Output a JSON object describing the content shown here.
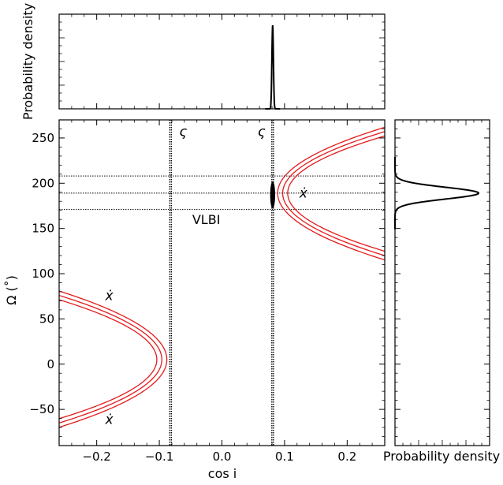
{
  "chart_data": [
    {
      "type": "line",
      "panel": "top-marginal",
      "ylabel": "Probability density",
      "peak_at_cos_i": 0.081,
      "shares_x_axis_with": "main"
    },
    {
      "type": "line",
      "panel": "main",
      "xlabel": "cos i",
      "ylabel": "Ω (˚)",
      "xlim": [
        -0.26,
        0.26
      ],
      "ylim": [
        -90,
        270
      ],
      "xticks": [
        "−0.2",
        "−0.1",
        "0.0",
        "0.1",
        "0.2"
      ],
      "xtick_values": [
        -0.2,
        -0.1,
        0.0,
        0.1,
        0.2
      ],
      "yticks": [
        "−50",
        "0",
        "50",
        "100",
        "150",
        "200",
        "250"
      ],
      "ytick_values": [
        -50,
        0,
        50,
        100,
        150,
        200,
        250
      ],
      "grid": false,
      "vertical_lines": [
        {
          "x": -0.082,
          "label": "ς"
        },
        {
          "x": 0.081,
          "label": "ς"
        }
      ],
      "horizontal_lines": [
        171,
        189,
        208
      ],
      "ellipse": {
        "center_x": 0.081,
        "center_y": 187,
        "half_width": 0.004,
        "half_height": 15
      },
      "curves": [
        {
          "name": "x-dot left curve",
          "vertex": [
            -0.096,
            5
          ],
          "arms_end_x": -0.26,
          "arms_end_y": [
            76,
            -65
          ],
          "offsets": [
            -0.008,
            0.0,
            0.008
          ]
        },
        {
          "name": "x-dot right curve",
          "vertex": [
            0.097,
            189
          ],
          "arms_end_x": 0.26,
          "arms_end_y": [
            257,
            120
          ],
          "offsets": [
            -0.008,
            0.0,
            0.008
          ]
        }
      ],
      "annotations": [
        {
          "text": "VLBI",
          "x": -0.025,
          "y": 155
        },
        {
          "text": "ẋ",
          "x": 0.13,
          "y": 184
        },
        {
          "text": "ẋ",
          "x": -0.18,
          "y": 71
        },
        {
          "text": "ẋ",
          "x": -0.18,
          "y": -66
        }
      ],
      "colors": {
        "curves": "#e31a1c",
        "lines": "#000000"
      }
    },
    {
      "type": "line",
      "panel": "right-marginal",
      "xlabel": "Probability density",
      "peak_at_omega": 189,
      "shares_y_axis_with": "main"
    }
  ]
}
